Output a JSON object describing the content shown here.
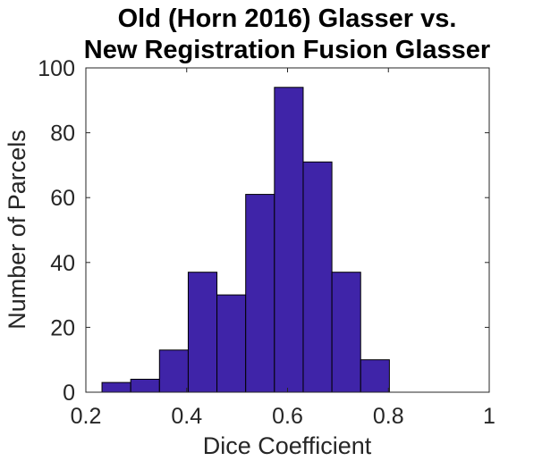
{
  "chart_data": {
    "type": "bar",
    "title_lines": [
      "Old (Horn 2016) Glasser vs.",
      "New Registration Fusion Glasser"
    ],
    "xlabel": "Dice Coefficient",
    "ylabel": "Number of Parcels",
    "xlim": [
      0.2,
      1
    ],
    "ylim": [
      0,
      100
    ],
    "xticks": [
      0.2,
      0.4,
      0.6,
      0.8,
      1
    ],
    "xtick_labels": [
      "0.2",
      "0.4",
      "0.6",
      "0.8",
      "1"
    ],
    "yticks": [
      0,
      20,
      40,
      60,
      80,
      100
    ],
    "ytick_labels": [
      "0",
      "20",
      "40",
      "60",
      "80",
      "100"
    ],
    "bin_edges": [
      0.232,
      0.289,
      0.346,
      0.403,
      0.46,
      0.517,
      0.574,
      0.631,
      0.688,
      0.745,
      0.802
    ],
    "values": [
      3,
      4,
      13,
      37,
      30,
      61,
      94,
      71,
      37,
      10
    ],
    "bar_color": "#3f24a8",
    "grid": false,
    "box": true
  }
}
